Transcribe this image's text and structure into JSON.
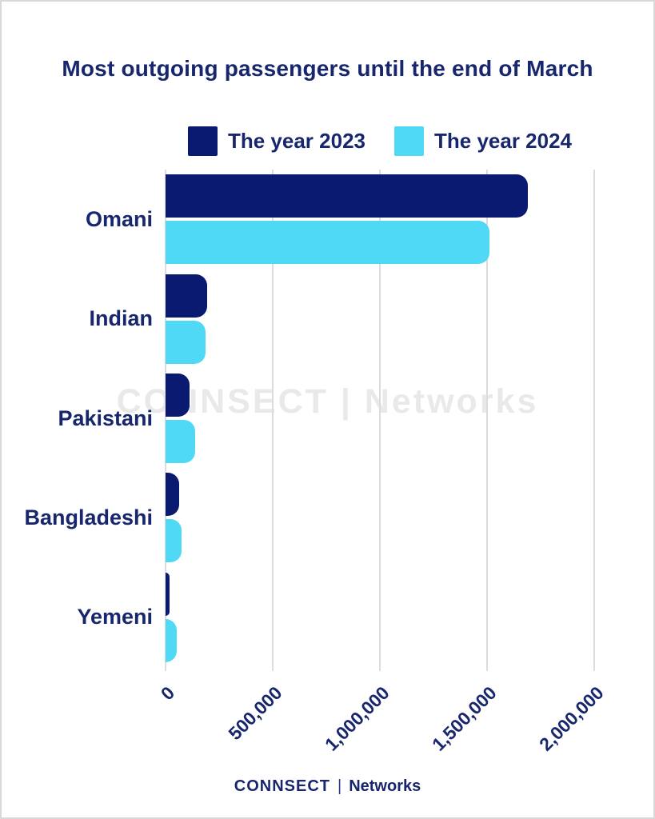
{
  "page": {
    "title": "Most outgoing passengers until the end of March",
    "watermark": "CONNSECT | Networks",
    "footer": {
      "brand": "CONNSECT",
      "divider": "|",
      "suffix": "Networks"
    }
  },
  "colors": {
    "navy": "#0a1a70",
    "cyan": "#4fd9f5",
    "text_navy": "#17266d",
    "gridline": "#dcdcdc",
    "watermark": "#e9e9e9"
  },
  "chart_data": {
    "type": "bar",
    "orientation": "horizontal",
    "title": "Most outgoing passengers until the end of March",
    "categories": [
      "Omani",
      "Indian",
      "Pakistani",
      "Bangladeshi",
      "Yemeni"
    ],
    "series": [
      {
        "name": "The year 2023",
        "color": "#0a1a70",
        "values": [
          1690000,
          195000,
          112000,
          63000,
          19000
        ]
      },
      {
        "name": "The year 2024",
        "color": "#4fd9f5",
        "values": [
          1510000,
          185000,
          138000,
          75000,
          52000
        ]
      }
    ],
    "xlabel": "",
    "ylabel": "",
    "xlim": [
      0,
      2000000
    ],
    "xticks": [
      {
        "value": 0,
        "label": "0"
      },
      {
        "value": 500000,
        "label": "500,000"
      },
      {
        "value": 1000000,
        "label": "1,000,000"
      },
      {
        "value": 1500000,
        "label": "1,500,000"
      },
      {
        "value": 2000000,
        "label": "2,000,000"
      }
    ],
    "tick_rotation_deg": 45,
    "legend_position": "top",
    "grid": "vertical"
  }
}
